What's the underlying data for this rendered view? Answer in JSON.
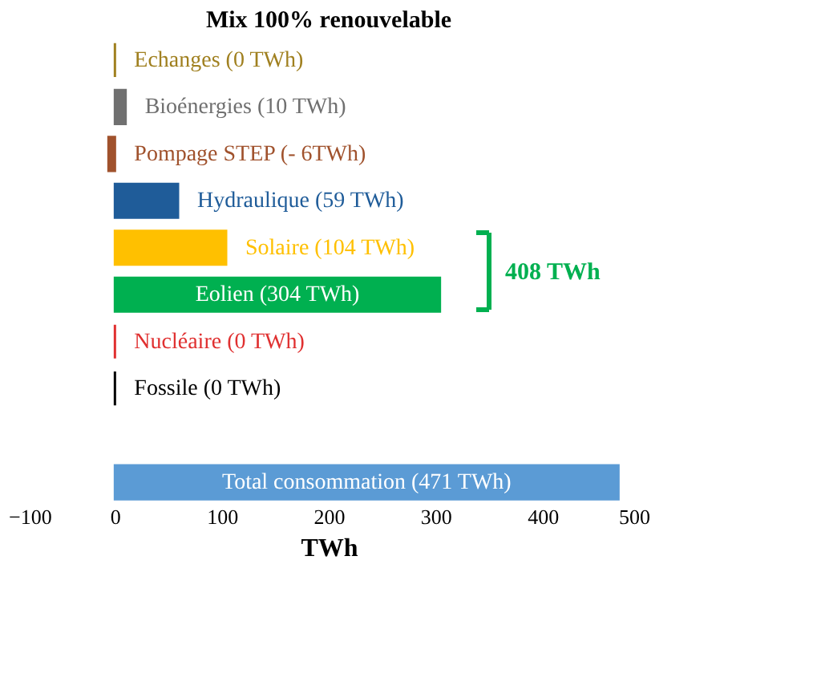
{
  "chart_data": {
    "type": "bar",
    "orientation": "horizontal",
    "title": "Mix 100% renouvelable",
    "xlabel": "TWh",
    "categories": [
      "Echanges (0 TWh)",
      "Bioénergies (10 TWh)",
      "Pompage STEP (- 6TWh)",
      "Hydraulique (59 TWh)",
      "Solaire (104 TWh)",
      "Eolien (304 TWh)",
      "Nucléaire (0 TWh)",
      "Fossile (0 TWh)",
      null,
      "Total consommation (471 TWh)"
    ],
    "values": [
      0,
      10,
      -6,
      59,
      104,
      304,
      0,
      0,
      null,
      471
    ],
    "colors": [
      "#a08020",
      "#707070",
      "#a0522d",
      "#1f5c99",
      "#ffc000",
      "#00b050",
      "#e03030",
      "#000000",
      "#ffffff",
      "#5b9bd5"
    ],
    "xlim": [
      -100,
      500
    ],
    "xticks": [
      -100,
      0,
      100,
      200,
      300,
      400,
      500
    ],
    "annotations": [
      "408 TWh"
    ],
    "grid": false
  }
}
